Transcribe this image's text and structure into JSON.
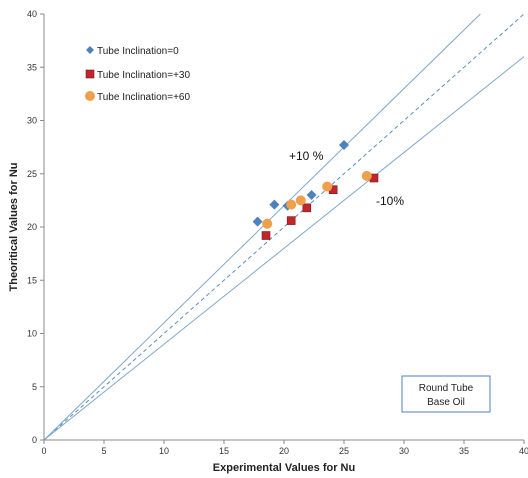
{
  "chart_data": {
    "type": "scatter",
    "xlabel": "Experimental Values for  Nu",
    "ylabel": "Theoritical Values for Nu",
    "xlim": [
      0,
      40
    ],
    "ylim": [
      0,
      40
    ],
    "xticks": [
      0,
      5,
      10,
      15,
      20,
      25,
      30,
      35,
      40
    ],
    "yticks": [
      0,
      5,
      10,
      15,
      20,
      25,
      30,
      35,
      40
    ],
    "grid": false,
    "legend_position": "top-left",
    "series": [
      {
        "name": "Tube Inclination=0",
        "marker": "diamond",
        "color": "#4F81BD",
        "points": [
          [
            17.8,
            20.5
          ],
          [
            19.2,
            22.1
          ],
          [
            20.3,
            22.0
          ],
          [
            22.3,
            23.0
          ],
          [
            25.0,
            27.7
          ]
        ]
      },
      {
        "name": "Tube Inclination=+30",
        "marker": "square",
        "color": "#C0272D",
        "points": [
          [
            18.5,
            19.2
          ],
          [
            20.6,
            20.6
          ],
          [
            21.9,
            21.8
          ],
          [
            24.1,
            23.5
          ],
          [
            27.5,
            24.6
          ]
        ]
      },
      {
        "name": "Tube Inclination=+60",
        "marker": "circle",
        "color": "#F0A04B",
        "points": [
          [
            18.6,
            20.3
          ],
          [
            20.6,
            22.1
          ],
          [
            21.4,
            22.5
          ],
          [
            23.6,
            23.8
          ],
          [
            26.9,
            24.8
          ]
        ]
      }
    ],
    "reference_lines": [
      {
        "label": "",
        "slope": 1.0,
        "style": "dashed",
        "color": "#5B8FB9"
      },
      {
        "label": "+10 %",
        "slope": 1.1,
        "style": "solid",
        "color": "#7FA7CC"
      },
      {
        "label": "-10%",
        "slope": 0.9,
        "style": "solid",
        "color": "#7FA7CC"
      }
    ],
    "annotations": [
      "+10 %",
      "-10%"
    ],
    "textbox": [
      "Round Tube",
      "Base Oil"
    ]
  },
  "colors": {
    "axis": "#888888",
    "plus_line": "#7FA7CC",
    "minus_line": "#7FA7CC",
    "equal_line": "#5B8FB9",
    "textbox_border": "#4F81BD"
  }
}
